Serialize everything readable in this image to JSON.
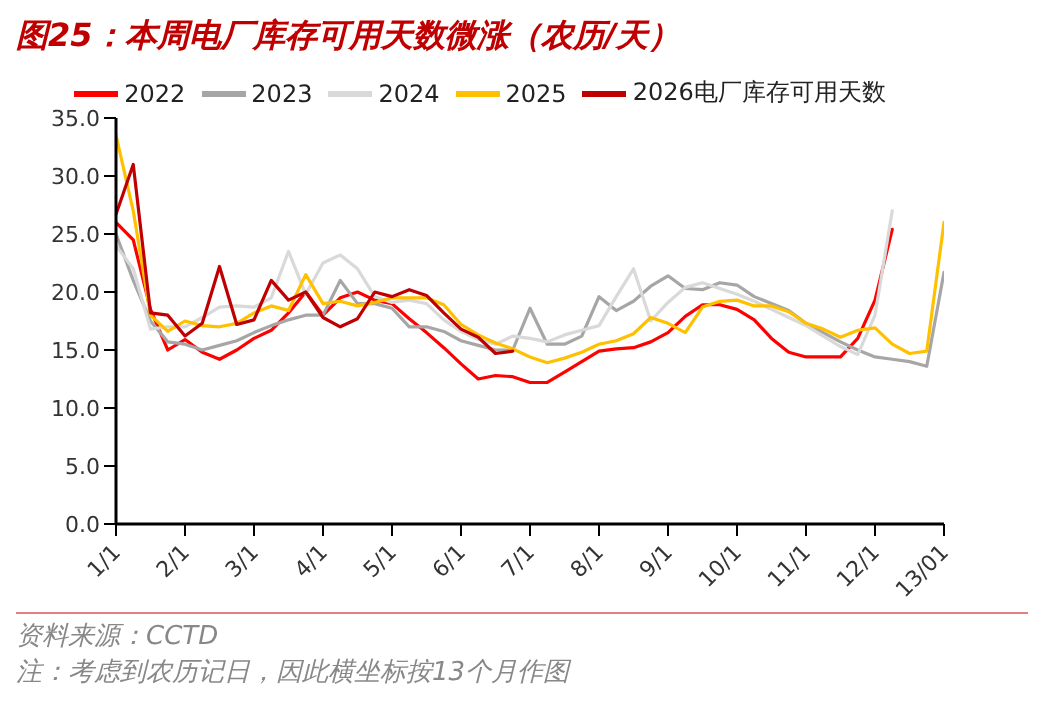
{
  "chart_data": {
    "type": "line",
    "title": "图25：本周电厂库存可用天数微涨（农历/天）",
    "annotations": [
      "资料来源：CCTD",
      "注：考虑到农历记日，因此横坐标按13个月作图"
    ],
    "categories": [
      "1/1",
      null,
      null,
      null,
      "2/1",
      null,
      null,
      null,
      "3/1",
      null,
      null,
      null,
      "4/1",
      null,
      null,
      null,
      "5/1",
      null,
      null,
      null,
      "6/1",
      null,
      null,
      null,
      "7/1",
      null,
      null,
      null,
      "8/1",
      null,
      null,
      null,
      "9/1",
      null,
      null,
      null,
      "10/1",
      null,
      null,
      null,
      "11/1",
      null,
      null,
      null,
      "12/1",
      null,
      null,
      null,
      "13/01"
    ],
    "ylim": [
      0,
      35
    ],
    "yticks": [
      {
        "value": 0,
        "label": "0.0"
      },
      {
        "value": 5,
        "label": "5.0"
      },
      {
        "value": 10,
        "label": "10.0"
      },
      {
        "value": 15,
        "label": "15.0"
      },
      {
        "value": 20,
        "label": "20.0"
      },
      {
        "value": 25,
        "label": "25.0"
      },
      {
        "value": 30,
        "label": "30.0"
      },
      {
        "value": 35,
        "label": "35.0"
      }
    ],
    "grid": false,
    "legend": "top",
    "marker": "none",
    "line_style": "solid",
    "series": [
      {
        "name": "2022",
        "color": "#ff0000",
        "values": [
          26,
          24.5,
          18.5,
          15,
          15.9,
          14.8,
          14.2,
          15,
          16,
          16.7,
          18.2,
          20,
          18,
          19.5,
          20,
          19.3,
          19,
          17.7,
          16.5,
          15.2,
          13.8,
          12.5,
          12.8,
          12.7,
          12.2,
          12.2,
          13.1,
          14,
          14.9,
          15.1,
          15.2,
          15.7,
          16.5,
          17.9,
          18.9,
          18.9,
          18.5,
          17.6,
          16,
          14.8,
          14.4,
          14.4,
          14.4,
          16,
          19.3,
          25.4,
          null,
          null,
          null
        ]
      },
      {
        "name": "2023",
        "color": "#a6a6a6",
        "values": [
          25,
          21,
          17.5,
          15.7,
          15.5,
          15,
          15.4,
          15.8,
          16.5,
          17.1,
          17.6,
          18,
          18,
          21,
          19,
          19,
          18.6,
          17,
          17,
          16.6,
          15.8,
          15.4,
          15,
          15,
          18.6,
          15.5,
          15.5,
          16.2,
          19.6,
          18.4,
          19.2,
          20.5,
          21.4,
          20.3,
          20.2,
          20.8,
          20.6,
          19.6,
          19,
          18.4,
          17.3,
          16.5,
          15.7,
          15,
          14.4,
          14.2,
          14,
          13.6,
          21.7
        ]
      },
      {
        "name": "2024",
        "color": "#d9d9d9",
        "values": [
          24,
          22,
          16.8,
          17,
          17,
          17.8,
          18.7,
          18.8,
          18.7,
          19.5,
          23.5,
          19.8,
          22.5,
          23.2,
          22,
          19.6,
          19.1,
          19.3,
          19,
          17.6,
          16.6,
          15.9,
          15.5,
          16.2,
          16,
          15.7,
          16.3,
          16.7,
          17.1,
          19.6,
          22,
          17.5,
          19.1,
          20.4,
          20.8,
          20.3,
          19.8,
          19.2,
          18.5,
          17.8,
          17.1,
          16.2,
          15.3,
          14.6,
          18,
          27,
          null,
          null,
          null
        ]
      },
      {
        "name": "2025",
        "color": "#ffc000",
        "values": [
          33.5,
          27,
          18,
          16.6,
          17.5,
          17.1,
          17,
          17.3,
          18.2,
          18.8,
          18.4,
          21.5,
          19,
          19.2,
          18.8,
          19.1,
          19.5,
          19.5,
          19.5,
          18.9,
          17.2,
          16.3,
          15.6,
          15.1,
          14.4,
          13.9,
          14.3,
          14.8,
          15.5,
          15.8,
          16.4,
          17.8,
          17.3,
          16.5,
          18.7,
          19.2,
          19.3,
          18.8,
          18.8,
          18.3,
          17.3,
          16.8,
          16.1,
          16.7,
          16.9,
          15.5,
          14.7,
          14.9,
          26
        ]
      },
      {
        "name": "2026电厂库存可用天数",
        "color": "#c00000",
        "values": [
          26.7,
          31,
          18.2,
          18,
          16.2,
          17.3,
          22.2,
          17.2,
          17.6,
          21,
          19.3,
          20,
          17.8,
          17,
          17.7,
          20,
          19.6,
          20.2,
          19.7,
          18.2,
          16.8,
          16.1,
          14.7,
          14.9,
          null,
          null,
          null,
          null,
          null,
          null,
          null,
          null,
          null,
          null,
          null,
          null,
          null,
          null,
          null,
          null,
          null,
          null,
          null,
          null,
          null,
          null,
          null,
          null,
          null
        ]
      }
    ]
  }
}
